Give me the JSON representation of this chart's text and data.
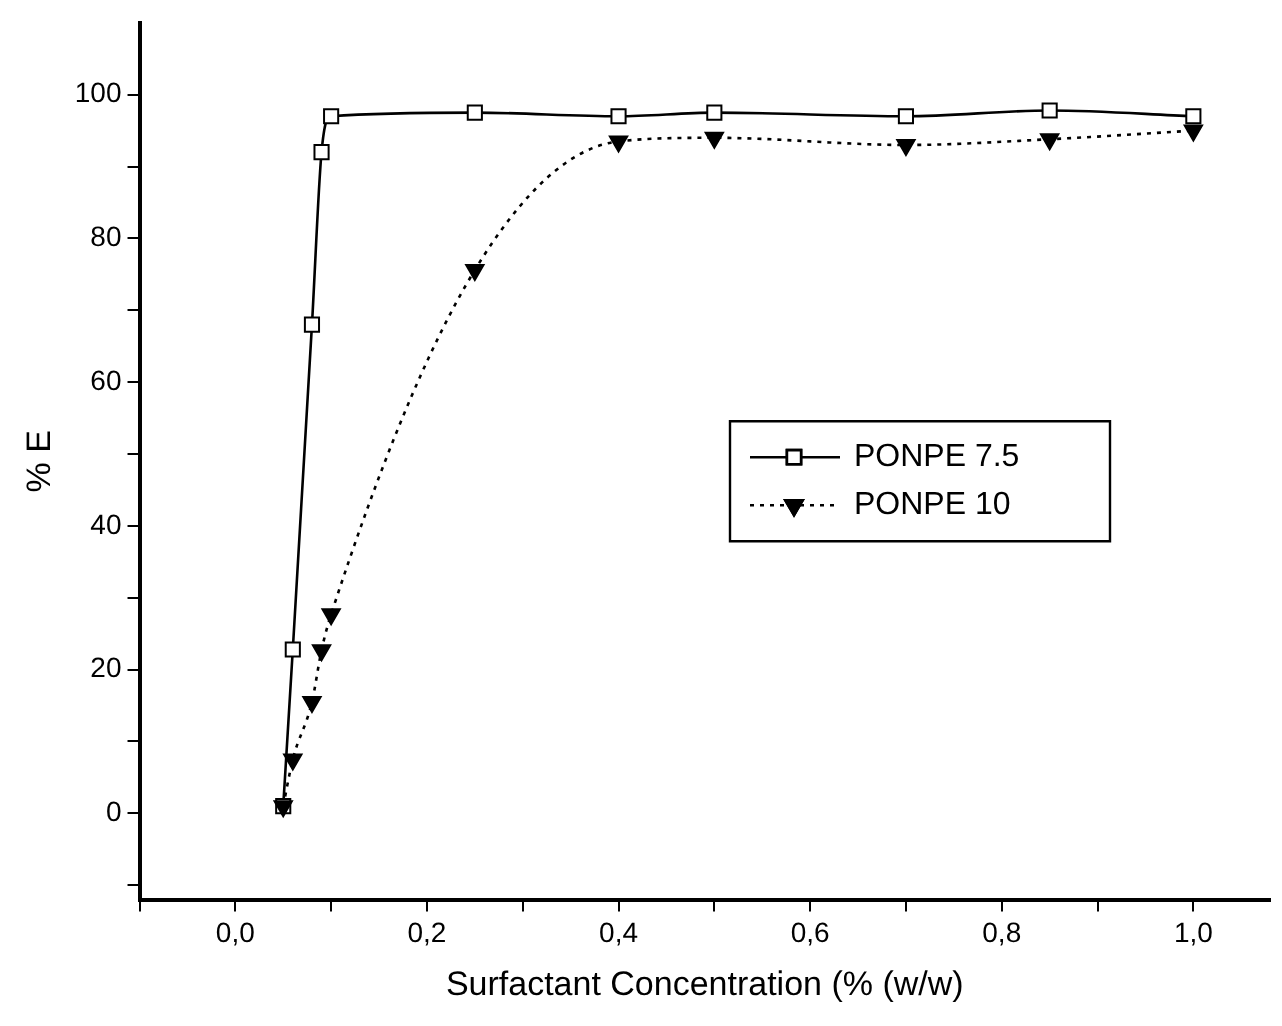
{
  "chart_data": {
    "type": "line",
    "xlabel": "Surfactant Concentration (% (w/w)",
    "ylabel": "% E",
    "xlim": [
      -0.1,
      1.08
    ],
    "ylim": [
      -12,
      110
    ],
    "xticks": [
      {
        "value": -0.1,
        "label": null
      },
      {
        "value": 0,
        "label": "0,0"
      },
      {
        "value": 0.1,
        "label": null
      },
      {
        "value": 0.2,
        "label": "0,2"
      },
      {
        "value": 0.3,
        "label": null
      },
      {
        "value": 0.4,
        "label": "0,4"
      },
      {
        "value": 0.5,
        "label": null
      },
      {
        "value": 0.6,
        "label": "0,6"
      },
      {
        "value": 0.7,
        "label": null
      },
      {
        "value": 0.8,
        "label": "0,8"
      },
      {
        "value": 0.9,
        "label": null
      },
      {
        "value": 1.0,
        "label": "1,0"
      }
    ],
    "yticks": [
      {
        "value": -10,
        "label": null
      },
      0,
      {
        "value": 10,
        "label": null
      },
      20,
      {
        "value": 30,
        "label": null
      },
      40,
      {
        "value": 50,
        "label": null
      },
      60,
      {
        "value": 70,
        "label": null
      },
      80,
      {
        "value": 90,
        "label": null
      },
      100
    ],
    "grid": false,
    "legend": "right",
    "series": [
      {
        "name": "PONPE 7.5",
        "color": "#000000",
        "marker": "square",
        "line_style": "solid",
        "x": [
          0.05,
          0.06,
          0.08,
          0.09,
          0.1,
          0.25,
          0.4,
          0.5,
          0.7,
          0.85,
          1.0
        ],
        "values": [
          1,
          22.8,
          68,
          92,
          97,
          97.5,
          97,
          97.5,
          97,
          97.8,
          97
        ]
      },
      {
        "name": "PONPE 10",
        "color": "#000000",
        "marker": "triangle",
        "line_style": "dotted",
        "x": [
          0.05,
          0.06,
          0.08,
          0.09,
          0.1,
          0.25,
          0.4,
          0.5,
          0.7,
          0.85,
          1.0
        ],
        "values": [
          1,
          7.5,
          15.5,
          22.7,
          27.7,
          75.6,
          93.5,
          94,
          93,
          93.8,
          95
        ]
      }
    ]
  }
}
